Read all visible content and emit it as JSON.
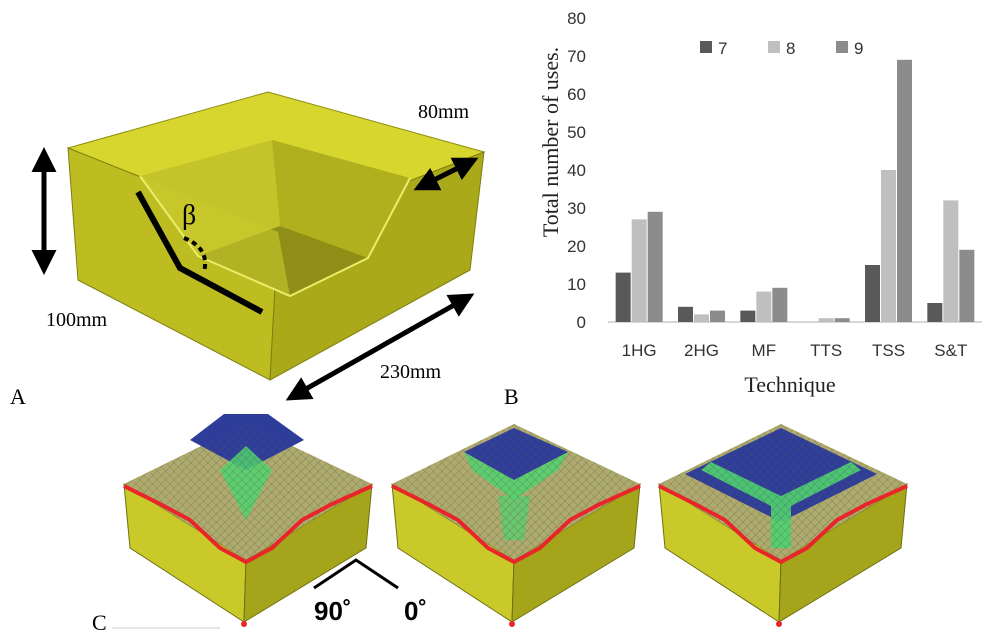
{
  "panel_a": {
    "label": "A",
    "dim_width": "230mm",
    "dim_depth": "100mm",
    "dim_wall": "80mm",
    "angle_symbol": "β"
  },
  "panel_b": {
    "label": "B"
  },
  "panel_c": {
    "label": "C",
    "orientation_90": "90˚",
    "orientation_0": "0˚"
  },
  "colors": {
    "series_7": "#595959",
    "series_8": "#bfbfbf",
    "series_9": "#8c8c8c",
    "mold": "#c9c92a",
    "blue_region": "#2f3d9a",
    "green_region": "#4fd36f",
    "red_edge": "#e8262a"
  },
  "chart_data": {
    "type": "bar",
    "categories": [
      "1HG",
      "2HG",
      "MF",
      "TTS",
      "TSS",
      "S&T"
    ],
    "series": [
      {
        "name": "7",
        "values": [
          13,
          4,
          3,
          0,
          15,
          5
        ]
      },
      {
        "name": "8",
        "values": [
          27,
          2,
          8,
          1,
          40,
          32
        ]
      },
      {
        "name": "9",
        "values": [
          29,
          3,
          9,
          1,
          69,
          19
        ]
      }
    ],
    "ylim": [
      0,
      80
    ],
    "yticks": [
      0,
      10,
      20,
      30,
      40,
      50,
      60,
      70,
      80
    ],
    "xlabel": "Technique",
    "ylabel": "Total number of uses.",
    "grid": false,
    "legend": "top"
  }
}
